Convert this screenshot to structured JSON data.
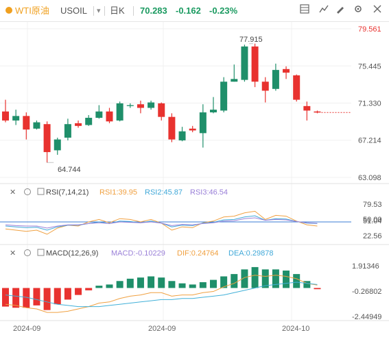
{
  "toolbar": {
    "symbol": "WTI原油",
    "code": "USOIL",
    "period": "日K",
    "price": "70.283",
    "change": "-0.162",
    "change_pct": "-0.23%",
    "icons": [
      "grid-icon",
      "indicator-icon",
      "draw-icon",
      "settings-icon",
      "fullscreen-icon",
      "layout-icon"
    ]
  },
  "colors": {
    "up": "#1f8f6a",
    "down": "#e8322f",
    "accent": "#f0a020",
    "text_up": "#1a9a60",
    "rsi1": "#f0a040",
    "rsi2": "#40a8d8",
    "rsi3": "#9a80d8",
    "dif": "#f0a040",
    "dea": "#40b0d8"
  },
  "price_axis": [
    "79.561",
    "75.445",
    "71.330",
    "67.214",
    "63.098"
  ],
  "annotations": {
    "high": "77.915",
    "low": "64.744"
  },
  "rsi": {
    "label": "RSI(7,14,21)",
    "rsi1": "RSI1:39.95",
    "rsi2": "RSI2:45.87",
    "rsi3": "RSI3:46.54",
    "axis": [
      "79.53",
      "51.04",
      "50.00",
      "22.56"
    ]
  },
  "macd": {
    "label": "MACD(12,26,9)",
    "macd": "MACD:-0.10229",
    "dif": "DIF:0.24764",
    "dea": "DEA:0.29878",
    "axis": [
      "1.91346",
      "-0.26802",
      "-2.44949"
    ]
  },
  "x_axis": [
    "2024-09",
    "2024-09",
    "2024-10"
  ],
  "chart_data": {
    "type": "candlestick",
    "y_range": [
      63.098,
      79.561
    ],
    "candles": [
      {
        "o": 70.4,
        "c": 69.4,
        "h": 71.7,
        "l": 69.2
      },
      {
        "o": 69.4,
        "c": 69.9,
        "h": 70.6,
        "l": 68.9
      },
      {
        "o": 69.9,
        "c": 68.4,
        "h": 70.3,
        "l": 67.3
      },
      {
        "o": 68.5,
        "c": 69.2,
        "h": 69.4,
        "l": 68.4
      },
      {
        "o": 69.0,
        "c": 65.9,
        "h": 69.3,
        "l": 64.744
      },
      {
        "o": 66.1,
        "c": 67.3,
        "h": 67.5,
        "l": 65.6
      },
      {
        "o": 67.5,
        "c": 69.0,
        "h": 69.6,
        "l": 67.2
      },
      {
        "o": 69.1,
        "c": 68.8,
        "h": 69.4,
        "l": 68.6
      },
      {
        "o": 68.9,
        "c": 69.7,
        "h": 70.0,
        "l": 68.8
      },
      {
        "o": 69.7,
        "c": 70.4,
        "h": 71.1,
        "l": 69.6
      },
      {
        "o": 70.4,
        "c": 69.3,
        "h": 70.8,
        "l": 69.1
      },
      {
        "o": 69.4,
        "c": 71.3,
        "h": 71.5,
        "l": 69.3
      },
      {
        "o": 71.0,
        "c": 71.1,
        "h": 71.3,
        "l": 70.8
      },
      {
        "o": 71.2,
        "c": 70.8,
        "h": 71.6,
        "l": 70.2
      },
      {
        "o": 70.8,
        "c": 71.4,
        "h": 71.6,
        "l": 70.6
      },
      {
        "o": 71.3,
        "c": 69.8,
        "h": 71.4,
        "l": 69.4
      },
      {
        "o": 69.8,
        "c": 67.3,
        "h": 70.2,
        "l": 67.0
      },
      {
        "o": 67.2,
        "c": 68.2,
        "h": 68.7,
        "l": 67.1
      },
      {
        "o": 68.5,
        "c": 68.3,
        "h": 68.8,
        "l": 68.1
      },
      {
        "o": 68.0,
        "c": 70.3,
        "h": 71.2,
        "l": 66.4
      },
      {
        "o": 70.3,
        "c": 70.6,
        "h": 72.0,
        "l": 70.2
      },
      {
        "o": 70.5,
        "c": 73.7,
        "h": 74.2,
        "l": 70.3
      },
      {
        "o": 73.7,
        "c": 74.0,
        "h": 75.6,
        "l": 73.7
      },
      {
        "o": 73.9,
        "c": 77.6,
        "h": 77.8,
        "l": 73.7
      },
      {
        "o": 77.6,
        "c": 73.7,
        "h": 77.915,
        "l": 73.1
      },
      {
        "o": 73.7,
        "c": 72.7,
        "h": 74.2,
        "l": 71.4
      },
      {
        "o": 72.9,
        "c": 75.0,
        "h": 75.7,
        "l": 72.7
      },
      {
        "o": 75.1,
        "c": 74.7,
        "h": 75.4,
        "l": 74.0
      },
      {
        "o": 74.4,
        "c": 71.7,
        "h": 74.5,
        "l": 71.5
      },
      {
        "o": 71.0,
        "c": 70.5,
        "h": 71.5,
        "l": 69.4
      },
      {
        "o": 70.4,
        "c": 70.283,
        "h": 70.5,
        "l": 70.2
      }
    ],
    "rsi1": [
      33,
      30,
      27,
      30,
      20,
      35,
      42,
      40,
      50,
      56,
      48,
      58,
      56,
      50,
      56,
      47,
      30,
      38,
      36,
      48,
      52,
      62,
      64,
      72,
      76,
      56,
      66,
      64,
      52,
      43,
      40
    ],
    "rsi2": [
      40,
      38,
      36,
      37,
      30,
      38,
      42,
      42,
      46,
      50,
      46,
      52,
      51,
      48,
      52,
      47,
      38,
      42,
      41,
      47,
      49,
      55,
      56,
      62,
      65,
      54,
      58,
      57,
      51,
      47,
      45.87
    ],
    "rsi3": [
      43,
      41,
      40,
      40,
      35,
      40,
      43,
      43,
      46,
      48,
      46,
      50,
      49,
      48,
      50,
      47,
      41,
      44,
      43,
      46,
      48,
      52,
      53,
      58,
      60,
      54,
      56,
      55,
      51,
      48,
      46.54
    ],
    "macd_hist": [
      -1.6,
      -1.7,
      -1.7,
      -1.5,
      -1.9,
      -1.4,
      -1.0,
      -0.6,
      -0.2,
      0.2,
      0.3,
      0.6,
      0.8,
      0.9,
      1.0,
      0.9,
      0.6,
      0.4,
      0.3,
      0.5,
      0.7,
      1.0,
      1.2,
      1.6,
      1.8,
      1.6,
      1.6,
      1.5,
      1.2,
      0.6,
      -0.10229
    ],
    "dif": [
      -1.4,
      -1.5,
      -1.7,
      -1.8,
      -2.1,
      -2.1,
      -2.0,
      -1.8,
      -1.6,
      -1.3,
      -1.2,
      -0.9,
      -0.7,
      -0.6,
      -0.4,
      -0.4,
      -0.7,
      -0.6,
      -0.6,
      -0.4,
      -0.3,
      0.1,
      0.4,
      0.9,
      1.1,
      1.0,
      1.1,
      1.0,
      0.8,
      0.4,
      0.24764
    ],
    "dea": [
      -0.6,
      -0.7,
      -0.8,
      -1.0,
      -1.2,
      -1.4,
      -1.5,
      -1.6,
      -1.6,
      -1.6,
      -1.5,
      -1.4,
      -1.3,
      -1.2,
      -1.1,
      -1.0,
      -1.0,
      -0.9,
      -0.9,
      -0.8,
      -0.7,
      -0.6,
      -0.4,
      -0.2,
      0.0,
      0.2,
      0.3,
      0.4,
      0.5,
      0.4,
      0.29878
    ],
    "macd_range": [
      -2.44949,
      1.91346
    ],
    "rsi_range": [
      0,
      100
    ]
  }
}
